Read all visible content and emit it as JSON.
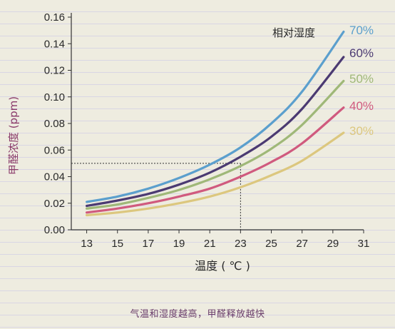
{
  "chart_data": {
    "type": "line",
    "ylabel": "甲醛浓度 (ppm)",
    "xlabel": "温度 ( ℃ )",
    "legend_title": "相对湿度",
    "caption": "气温和湿度越高，甲醛释放越快",
    "x_ticks": [
      13,
      15,
      17,
      19,
      21,
      23,
      25,
      27,
      29,
      31
    ],
    "y_ticks": [
      "0.00",
      "0.02",
      "0.04",
      "0.06",
      "0.08",
      "0.10",
      "0.12",
      "0.14",
      "0.16"
    ],
    "xlim": [
      12,
      31
    ],
    "ylim": [
      0,
      0.16
    ],
    "grid": false,
    "legend_placement": "top-right, labels at line ends",
    "x": [
      13,
      15,
      17,
      19,
      21,
      23,
      25,
      27,
      29.7
    ],
    "series": [
      {
        "name": "70%",
        "color": "#5b9fcd",
        "values": [
          0.021,
          0.025,
          0.031,
          0.039,
          0.049,
          0.062,
          0.08,
          0.104,
          0.149
        ]
      },
      {
        "name": "60%",
        "color": "#4b3a72",
        "values": [
          0.018,
          0.022,
          0.027,
          0.034,
          0.043,
          0.055,
          0.07,
          0.091,
          0.13
        ]
      },
      {
        "name": "50%",
        "color": "#9fb878",
        "values": [
          0.016,
          0.019,
          0.024,
          0.03,
          0.038,
          0.048,
          0.061,
          0.079,
          0.112
        ]
      },
      {
        "name": "40%",
        "color": "#d05a7e",
        "values": [
          0.013,
          0.016,
          0.02,
          0.025,
          0.031,
          0.04,
          0.051,
          0.065,
          0.092
        ]
      },
      {
        "name": "30%",
        "color": "#dcc77e",
        "values": [
          0.011,
          0.013,
          0.016,
          0.02,
          0.025,
          0.032,
          0.041,
          0.052,
          0.073
        ]
      }
    ],
    "reference": {
      "x": 23,
      "y": 0.05
    }
  }
}
